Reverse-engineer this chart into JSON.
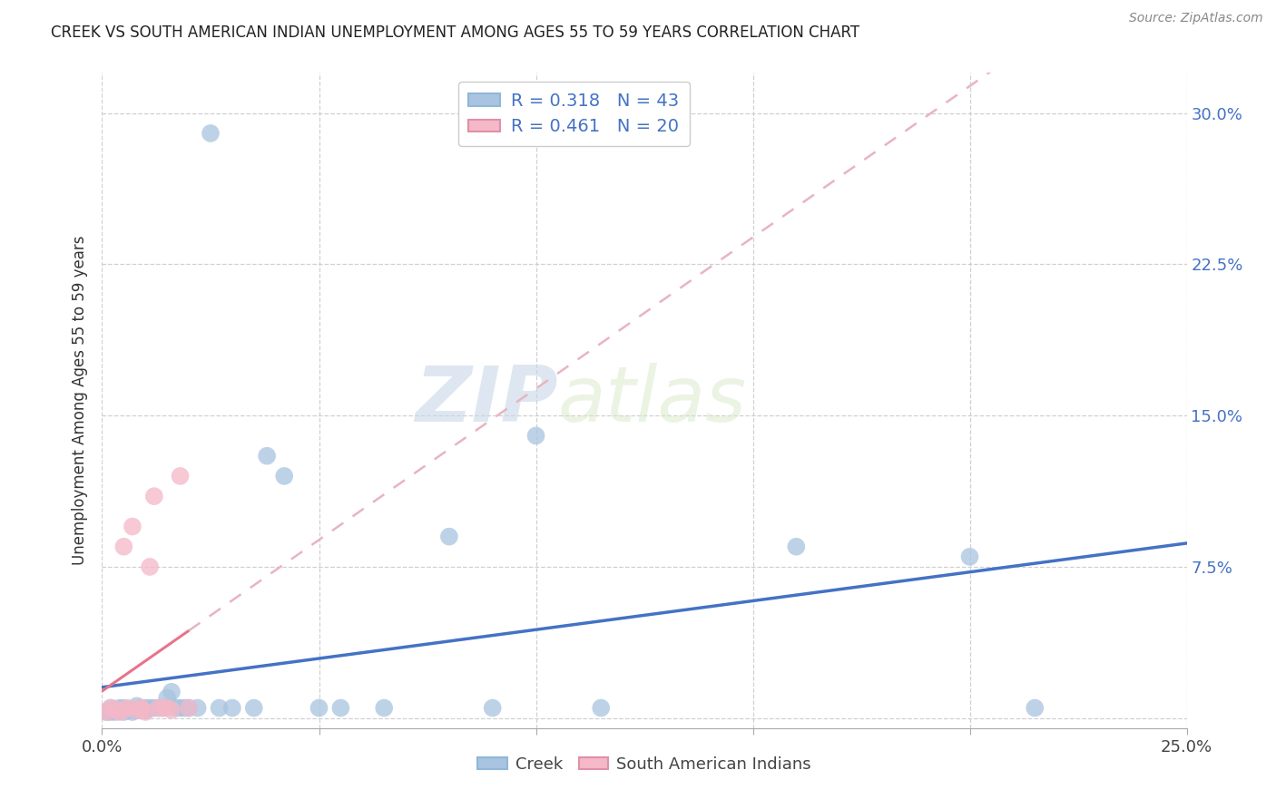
{
  "title": "CREEK VS SOUTH AMERICAN INDIAN UNEMPLOYMENT AMONG AGES 55 TO 59 YEARS CORRELATION CHART",
  "source": "Source: ZipAtlas.com",
  "ylabel": "Unemployment Among Ages 55 to 59 years",
  "xlim": [
    0.0,
    0.25
  ],
  "ylim": [
    -0.005,
    0.32
  ],
  "plot_ylim": [
    0.0,
    0.3
  ],
  "xtick_positions": [
    0.0,
    0.05,
    0.1,
    0.15,
    0.2,
    0.25
  ],
  "xticklabels": [
    "0.0%",
    "",
    "",
    "",
    "",
    "25.0%"
  ],
  "ytick_positions": [
    0.075,
    0.15,
    0.225,
    0.3
  ],
  "yticklabels": [
    "7.5%",
    "15.0%",
    "22.5%",
    "30.0%"
  ],
  "creek_R": 0.318,
  "creek_N": 43,
  "sa_R": 0.461,
  "sa_N": 20,
  "creek_color": "#a8c4e0",
  "sa_color": "#f4b8c8",
  "creek_line_color": "#4472c4",
  "sa_line_color": "#e8748a",
  "sa_line_dash_color": "#e8b4c0",
  "background_color": "#ffffff",
  "watermark_zip": "ZIP",
  "watermark_atlas": "atlas",
  "grid_color": "#d0d0d0",
  "creek_x": [
    0.001,
    0.002,
    0.002,
    0.003,
    0.004,
    0.005,
    0.005,
    0.006,
    0.007,
    0.008,
    0.008,
    0.009,
    0.009,
    0.01,
    0.01,
    0.01,
    0.011,
    0.012,
    0.013,
    0.014,
    0.015,
    0.016,
    0.017,
    0.018,
    0.019,
    0.02,
    0.022,
    0.025,
    0.027,
    0.03,
    0.035,
    0.038,
    0.042,
    0.05,
    0.055,
    0.065,
    0.08,
    0.09,
    0.1,
    0.115,
    0.16,
    0.2,
    0.215
  ],
  "creek_y": [
    0.003,
    0.003,
    0.005,
    0.003,
    0.005,
    0.003,
    0.005,
    0.004,
    0.003,
    0.004,
    0.006,
    0.004,
    0.005,
    0.004,
    0.005,
    0.004,
    0.005,
    0.005,
    0.005,
    0.005,
    0.01,
    0.013,
    0.005,
    0.005,
    0.005,
    0.005,
    0.005,
    0.29,
    0.005,
    0.005,
    0.005,
    0.13,
    0.12,
    0.005,
    0.005,
    0.005,
    0.09,
    0.005,
    0.14,
    0.005,
    0.085,
    0.08,
    0.005
  ],
  "sa_x": [
    0.001,
    0.002,
    0.003,
    0.004,
    0.005,
    0.005,
    0.006,
    0.007,
    0.008,
    0.009,
    0.009,
    0.01,
    0.011,
    0.012,
    0.013,
    0.014,
    0.015,
    0.016,
    0.018,
    0.02
  ],
  "sa_y": [
    0.003,
    0.005,
    0.004,
    0.003,
    0.085,
    0.004,
    0.005,
    0.095,
    0.004,
    0.004,
    0.005,
    0.003,
    0.075,
    0.11,
    0.005,
    0.005,
    0.005,
    0.004,
    0.12,
    0.005
  ]
}
